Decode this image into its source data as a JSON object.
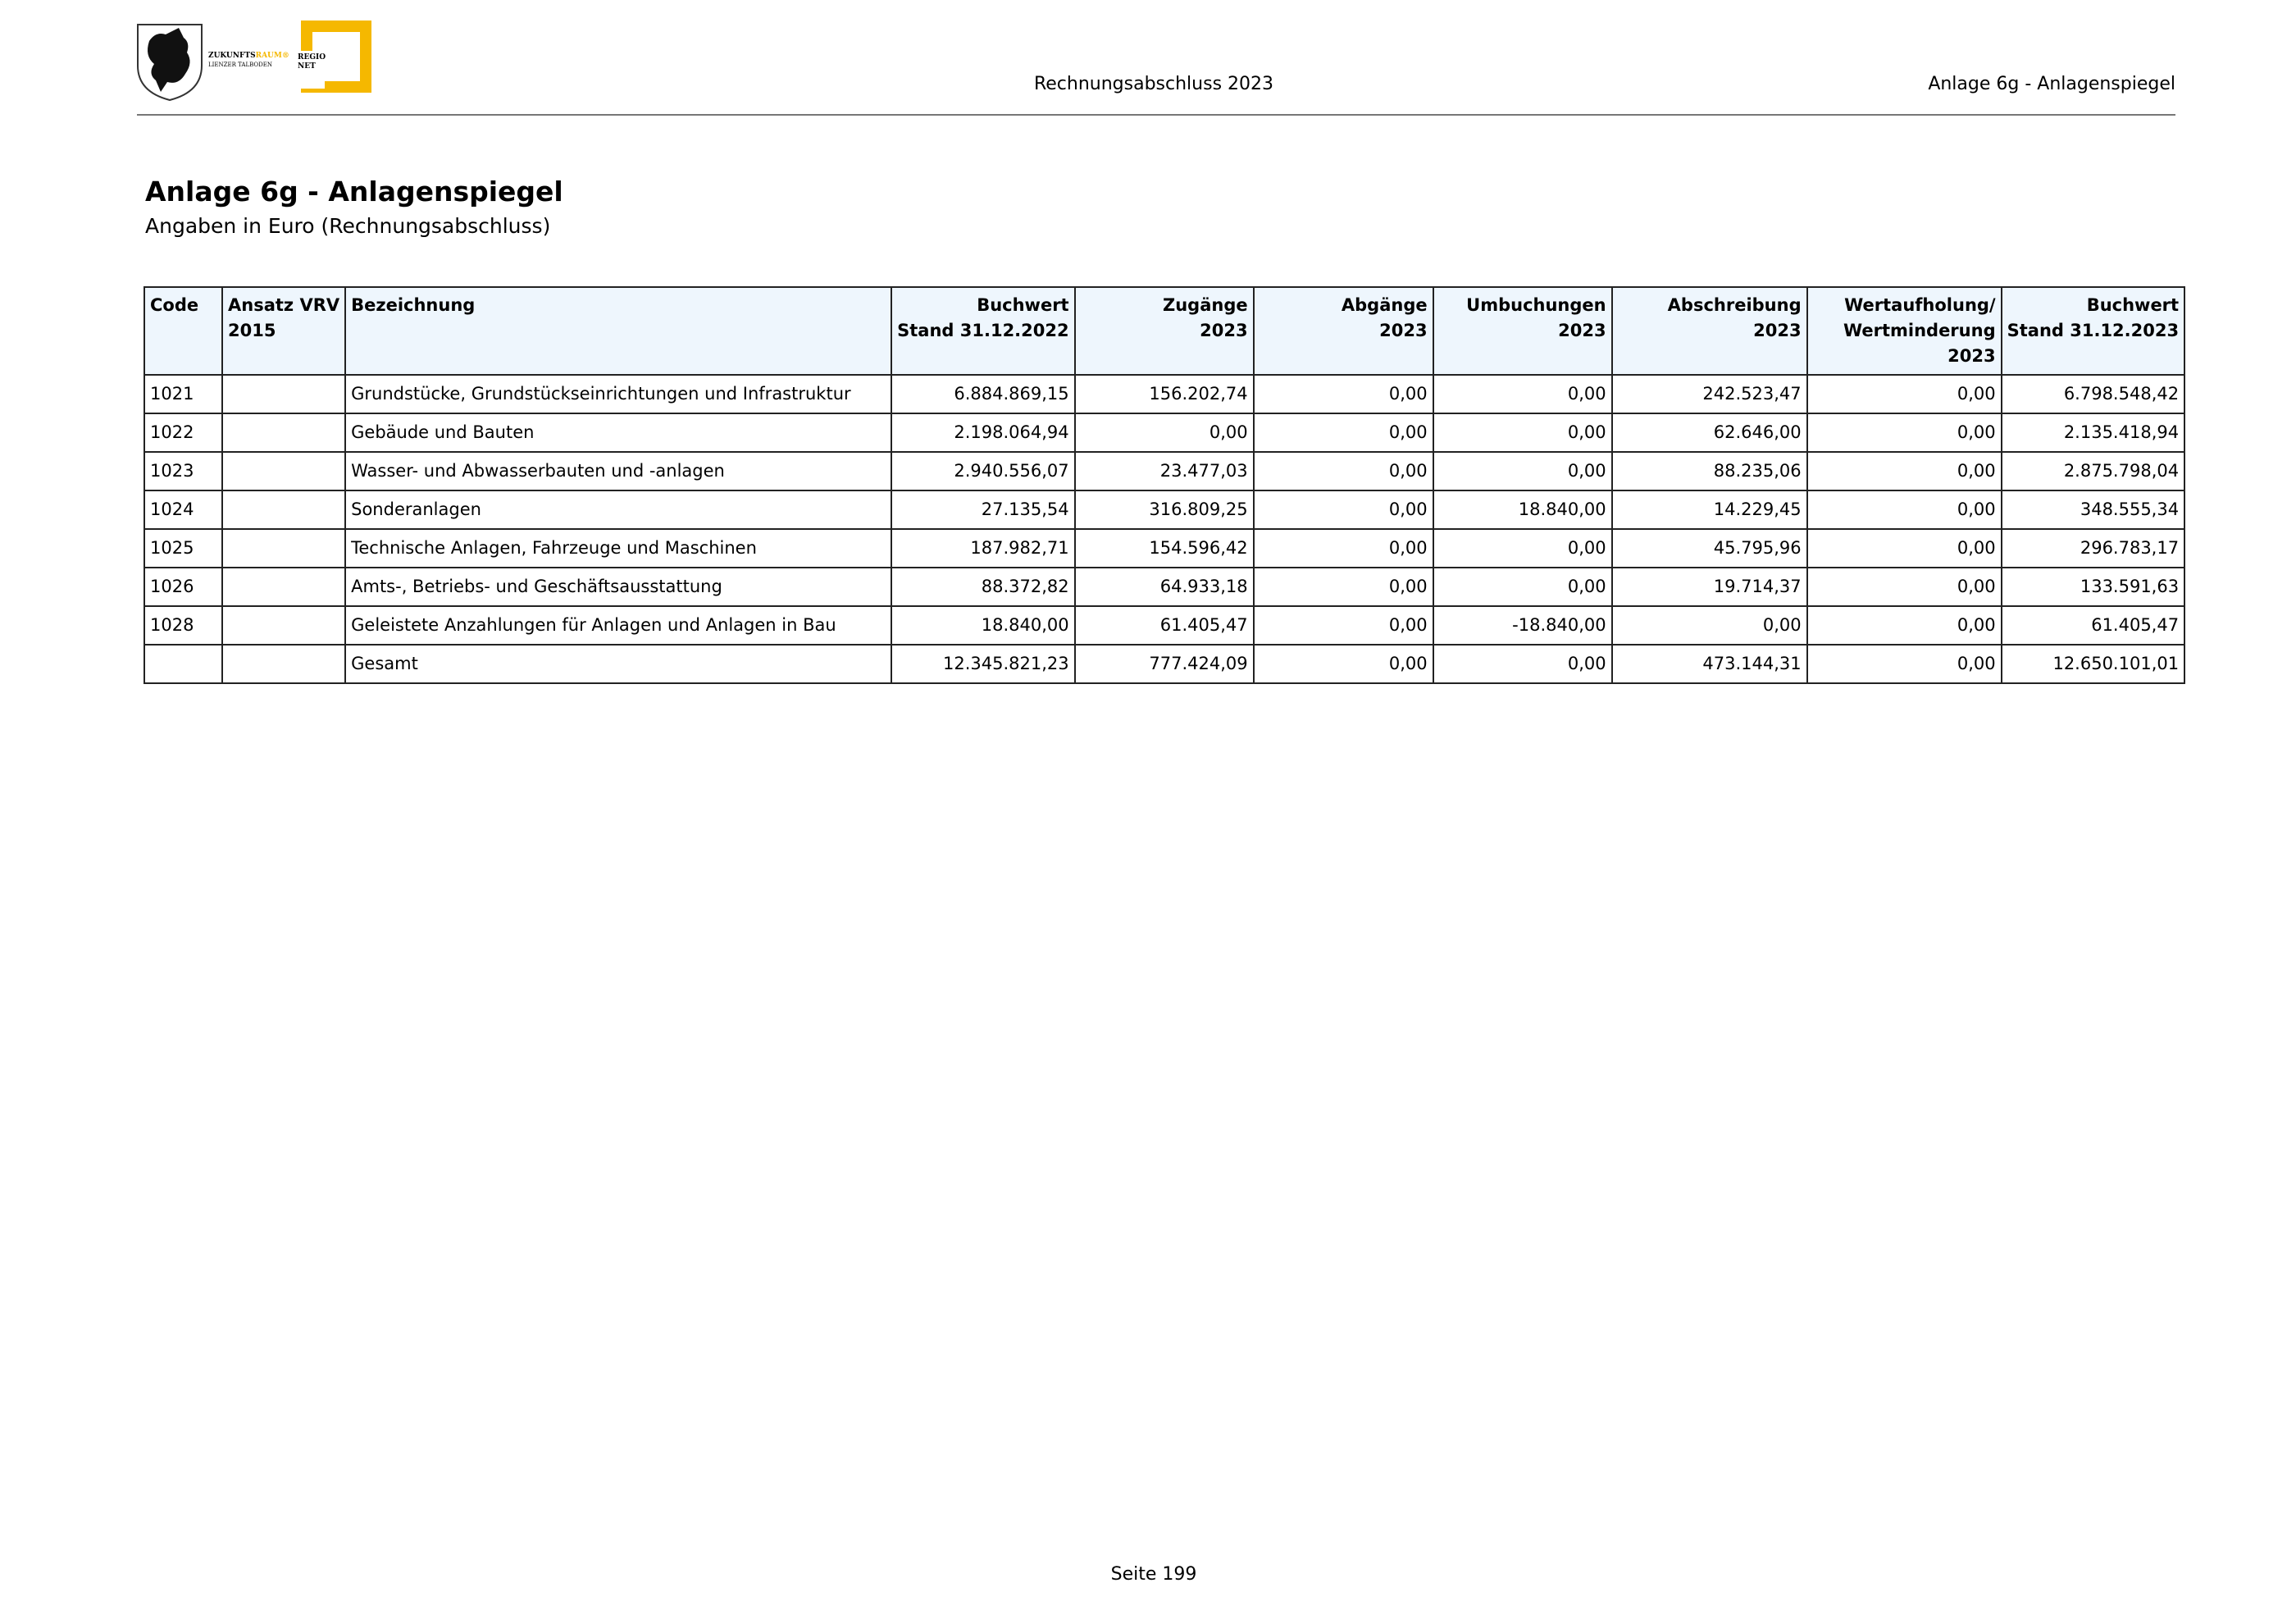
{
  "header": {
    "logo": {
      "brand_dark": "ZUKUNFTS",
      "brand_accent": "RAUM®",
      "brand_sub": "LIENZER TALBODEN",
      "regio": "REGIO",
      "net": "NET"
    },
    "center": "Rechnungsabschluss 2023",
    "right": "Anlage 6g - Anlagenspiegel"
  },
  "title": "Anlage 6g - Anlagenspiegel",
  "subtitle": "Angaben in Euro (Rechnungsabschluss)",
  "table": {
    "columns": [
      [
        "Code"
      ],
      [
        "Ansatz VRV",
        "2015"
      ],
      [
        "Bezeichnung"
      ],
      [
        "Buchwert",
        "Stand 31.12.2022"
      ],
      [
        "Zugänge",
        "2023"
      ],
      [
        "Abgänge",
        "2023"
      ],
      [
        "Umbuchungen",
        "2023"
      ],
      [
        "Abschreibung",
        "2023"
      ],
      [
        "Wertaufholung/",
        "Wertminderung",
        "2023"
      ],
      [
        "Buchwert",
        "Stand 31.12.2023"
      ]
    ],
    "rows": [
      {
        "code": "1021",
        "label": "Grundstücke, Grundstückseinrichtungen und Infrastruktur",
        "values": [
          "6.884.869,15",
          "156.202,74",
          "0,00",
          "0,00",
          "242.523,47",
          "0,00",
          "6.798.548,42"
        ]
      },
      {
        "code": "1022",
        "label": "Gebäude und Bauten",
        "values": [
          "2.198.064,94",
          "0,00",
          "0,00",
          "0,00",
          "62.646,00",
          "0,00",
          "2.135.418,94"
        ]
      },
      {
        "code": "1023",
        "label": "Wasser- und Abwasserbauten und -anlagen",
        "values": [
          "2.940.556,07",
          "23.477,03",
          "0,00",
          "0,00",
          "88.235,06",
          "0,00",
          "2.875.798,04"
        ]
      },
      {
        "code": "1024",
        "label": "Sonderanlagen",
        "values": [
          "27.135,54",
          "316.809,25",
          "0,00",
          "18.840,00",
          "14.229,45",
          "0,00",
          "348.555,34"
        ]
      },
      {
        "code": "1025",
        "label": "Technische Anlagen, Fahrzeuge und Maschinen",
        "values": [
          "187.982,71",
          "154.596,42",
          "0,00",
          "0,00",
          "45.795,96",
          "0,00",
          "296.783,17"
        ]
      },
      {
        "code": "1026",
        "label": "Amts-, Betriebs- und Geschäftsausstattung",
        "values": [
          "88.372,82",
          "64.933,18",
          "0,00",
          "0,00",
          "19.714,37",
          "0,00",
          "133.591,63"
        ]
      },
      {
        "code": "1028",
        "label": "Geleistete Anzahlungen für Anlagen und Anlagen in Bau",
        "values": [
          "18.840,00",
          "61.405,47",
          "0,00",
          "-18.840,00",
          "0,00",
          "0,00",
          "61.405,47"
        ]
      },
      {
        "label": "Gesamt",
        "values": [
          "12.345.821,23",
          "777.424,09",
          "0,00",
          "0,00",
          "473.144,31",
          "0,00",
          "12.650.101,01"
        ]
      }
    ]
  },
  "footer": "Seite 199"
}
